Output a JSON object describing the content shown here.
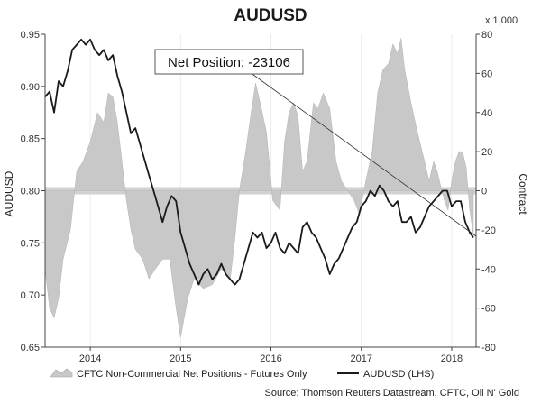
{
  "chart_data": {
    "type": "line",
    "title": "AUDUSD",
    "ylabel_left": "AUDUSD",
    "ylabel_right": "Contract",
    "right_unit": "x 1,000",
    "ylim_left": [
      0.65,
      0.95
    ],
    "ylim_right": [
      -80,
      80
    ],
    "left_ticks": [
      "0.65",
      "0.70",
      "0.75",
      "0.80",
      "0.85",
      "0.90",
      "0.95"
    ],
    "right_ticks": [
      "-80",
      "-60",
      "-40",
      "-20",
      "0",
      "20",
      "40",
      "60",
      "80"
    ],
    "x_ticks": [
      "2014",
      "2015",
      "2016",
      "2017",
      "2018"
    ],
    "legend": [
      {
        "name": "CFTC Non-Commercial Net Positions - Futures Only",
        "style": "area",
        "color": "#c8c8c8"
      },
      {
        "name": "AUDUSD (LHS)",
        "style": "line",
        "color": "#1a1a1a"
      }
    ],
    "annotation": "Net Position: -23106",
    "source": "Source: Thomson Reuters Datastream, CFTC, Oil N' Gold",
    "series": [
      {
        "name": "CFTC Non-Commercial Net Positions - Futures Only",
        "axis": "right",
        "points": [
          [
            2013.5,
            -40
          ],
          [
            2013.55,
            -60
          ],
          [
            2013.6,
            -65
          ],
          [
            2013.65,
            -55
          ],
          [
            2013.7,
            -35
          ],
          [
            2013.78,
            -20
          ],
          [
            2013.85,
            10
          ],
          [
            2013.92,
            15
          ],
          [
            2014.0,
            25
          ],
          [
            2014.08,
            40
          ],
          [
            2014.15,
            35
          ],
          [
            2014.2,
            50
          ],
          [
            2014.25,
            48
          ],
          [
            2014.3,
            35
          ],
          [
            2014.35,
            15
          ],
          [
            2014.4,
            -5
          ],
          [
            2014.45,
            -20
          ],
          [
            2014.5,
            -30
          ],
          [
            2014.58,
            -35
          ],
          [
            2014.65,
            -45
          ],
          [
            2014.72,
            -40
          ],
          [
            2014.8,
            -35
          ],
          [
            2014.88,
            -35
          ],
          [
            2014.95,
            -60
          ],
          [
            2015.0,
            -75
          ],
          [
            2015.08,
            -55
          ],
          [
            2015.15,
            -45
          ],
          [
            2015.25,
            -50
          ],
          [
            2015.35,
            -48
          ],
          [
            2015.45,
            -40
          ],
          [
            2015.55,
            -45
          ],
          [
            2015.6,
            -25
          ],
          [
            2015.65,
            0
          ],
          [
            2015.72,
            20
          ],
          [
            2015.78,
            40
          ],
          [
            2015.83,
            55
          ],
          [
            2015.88,
            45
          ],
          [
            2015.95,
            30
          ],
          [
            2016.02,
            -5
          ],
          [
            2016.1,
            -10
          ],
          [
            2016.15,
            25
          ],
          [
            2016.2,
            40
          ],
          [
            2016.25,
            45
          ],
          [
            2016.3,
            38
          ],
          [
            2016.35,
            10
          ],
          [
            2016.4,
            15
          ],
          [
            2016.47,
            45
          ],
          [
            2016.52,
            42
          ],
          [
            2016.58,
            50
          ],
          [
            2016.65,
            42
          ],
          [
            2016.72,
            15
          ],
          [
            2016.78,
            5
          ],
          [
            2016.85,
            0
          ],
          [
            2016.92,
            -5
          ],
          [
            2016.98,
            -12
          ],
          [
            2017.05,
            5
          ],
          [
            2017.12,
            20
          ],
          [
            2017.18,
            50
          ],
          [
            2017.24,
            62
          ],
          [
            2017.3,
            65
          ],
          [
            2017.35,
            75
          ],
          [
            2017.4,
            70
          ],
          [
            2017.44,
            78
          ],
          [
            2017.48,
            62
          ],
          [
            2017.55,
            45
          ],
          [
            2017.62,
            30
          ],
          [
            2017.7,
            15
          ],
          [
            2017.75,
            5
          ],
          [
            2017.8,
            15
          ],
          [
            2017.84,
            10
          ],
          [
            2017.88,
            2
          ],
          [
            2017.92,
            -5
          ],
          [
            2017.96,
            -10
          ],
          [
            2018.0,
            5
          ],
          [
            2018.04,
            15
          ],
          [
            2018.08,
            20
          ],
          [
            2018.12,
            20
          ],
          [
            2018.16,
            12
          ],
          [
            2018.2,
            -10
          ],
          [
            2018.24,
            -23
          ]
        ]
      },
      {
        "name": "AUDUSD (LHS)",
        "axis": "left",
        "points": [
          [
            2013.5,
            0.89
          ],
          [
            2013.55,
            0.895
          ],
          [
            2013.6,
            0.875
          ],
          [
            2013.65,
            0.905
          ],
          [
            2013.7,
            0.9
          ],
          [
            2013.75,
            0.915
          ],
          [
            2013.8,
            0.935
          ],
          [
            2013.85,
            0.94
          ],
          [
            2013.9,
            0.945
          ],
          [
            2013.95,
            0.94
          ],
          [
            2014.0,
            0.945
          ],
          [
            2014.05,
            0.935
          ],
          [
            2014.1,
            0.93
          ],
          [
            2014.15,
            0.935
          ],
          [
            2014.2,
            0.925
          ],
          [
            2014.25,
            0.93
          ],
          [
            2014.3,
            0.91
          ],
          [
            2014.35,
            0.895
          ],
          [
            2014.4,
            0.875
          ],
          [
            2014.45,
            0.855
          ],
          [
            2014.5,
            0.86
          ],
          [
            2014.55,
            0.845
          ],
          [
            2014.6,
            0.83
          ],
          [
            2014.65,
            0.815
          ],
          [
            2014.7,
            0.8
          ],
          [
            2014.75,
            0.785
          ],
          [
            2014.8,
            0.77
          ],
          [
            2014.85,
            0.785
          ],
          [
            2014.9,
            0.795
          ],
          [
            2014.95,
            0.79
          ],
          [
            2015.0,
            0.76
          ],
          [
            2015.05,
            0.745
          ],
          [
            2015.1,
            0.73
          ],
          [
            2015.15,
            0.72
          ],
          [
            2015.2,
            0.71
          ],
          [
            2015.25,
            0.72
          ],
          [
            2015.3,
            0.725
          ],
          [
            2015.35,
            0.715
          ],
          [
            2015.4,
            0.72
          ],
          [
            2015.45,
            0.73
          ],
          [
            2015.5,
            0.72
          ],
          [
            2015.55,
            0.715
          ],
          [
            2015.6,
            0.71
          ],
          [
            2015.65,
            0.715
          ],
          [
            2015.7,
            0.73
          ],
          [
            2015.75,
            0.745
          ],
          [
            2015.8,
            0.76
          ],
          [
            2015.85,
            0.755
          ],
          [
            2015.9,
            0.76
          ],
          [
            2015.95,
            0.745
          ],
          [
            2016.0,
            0.75
          ],
          [
            2016.05,
            0.76
          ],
          [
            2016.1,
            0.745
          ],
          [
            2016.15,
            0.74
          ],
          [
            2016.2,
            0.75
          ],
          [
            2016.25,
            0.745
          ],
          [
            2016.3,
            0.74
          ],
          [
            2016.35,
            0.765
          ],
          [
            2016.4,
            0.77
          ],
          [
            2016.45,
            0.76
          ],
          [
            2016.5,
            0.755
          ],
          [
            2016.55,
            0.745
          ],
          [
            2016.6,
            0.735
          ],
          [
            2016.65,
            0.72
          ],
          [
            2016.7,
            0.73
          ],
          [
            2016.75,
            0.735
          ],
          [
            2016.8,
            0.745
          ],
          [
            2016.85,
            0.755
          ],
          [
            2016.9,
            0.765
          ],
          [
            2016.95,
            0.77
          ],
          [
            2017.0,
            0.785
          ],
          [
            2017.05,
            0.79
          ],
          [
            2017.1,
            0.8
          ],
          [
            2017.15,
            0.795
          ],
          [
            2017.2,
            0.805
          ],
          [
            2017.25,
            0.8
          ],
          [
            2017.3,
            0.79
          ],
          [
            2017.35,
            0.785
          ],
          [
            2017.4,
            0.79
          ],
          [
            2017.45,
            0.77
          ],
          [
            2017.5,
            0.77
          ],
          [
            2017.55,
            0.775
          ],
          [
            2017.6,
            0.76
          ],
          [
            2017.65,
            0.765
          ],
          [
            2017.7,
            0.775
          ],
          [
            2017.75,
            0.785
          ],
          [
            2017.8,
            0.79
          ],
          [
            2017.85,
            0.795
          ],
          [
            2017.9,
            0.8
          ],
          [
            2017.95,
            0.8
          ],
          [
            2018.0,
            0.785
          ],
          [
            2018.05,
            0.79
          ],
          [
            2018.1,
            0.79
          ],
          [
            2018.15,
            0.77
          ],
          [
            2018.2,
            0.76
          ],
          [
            2018.24,
            0.755
          ]
        ]
      }
    ]
  }
}
